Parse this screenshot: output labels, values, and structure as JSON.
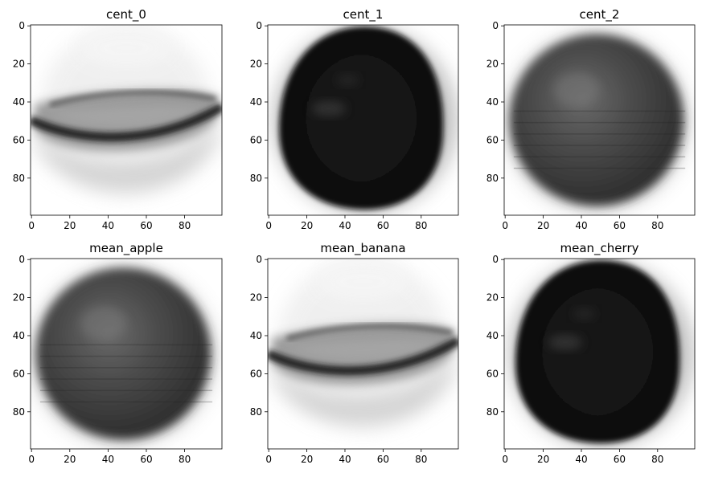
{
  "chart_data": [
    {
      "type": "heatmap",
      "title": "cent_0",
      "shape": "banana",
      "colormap": "gray_r",
      "xlim": [
        0,
        99
      ],
      "ylim": [
        99,
        0
      ],
      "xticks": [
        0,
        20,
        40,
        60,
        80
      ],
      "yticks": [
        0,
        20,
        40,
        60,
        80
      ]
    },
    {
      "type": "heatmap",
      "title": "cent_1",
      "shape": "cherry",
      "colormap": "gray_r",
      "xlim": [
        0,
        99
      ],
      "ylim": [
        99,
        0
      ],
      "xticks": [
        0,
        20,
        40,
        60,
        80
      ],
      "yticks": [
        0,
        20,
        40,
        60,
        80
      ]
    },
    {
      "type": "heatmap",
      "title": "cent_2",
      "shape": "apple",
      "colormap": "gray_r",
      "xlim": [
        0,
        99
      ],
      "ylim": [
        99,
        0
      ],
      "xticks": [
        0,
        20,
        40,
        60,
        80
      ],
      "yticks": [
        0,
        20,
        40,
        60,
        80
      ]
    },
    {
      "type": "heatmap",
      "title": "mean_apple",
      "shape": "apple",
      "colormap": "gray_r",
      "xlim": [
        0,
        99
      ],
      "ylim": [
        99,
        0
      ],
      "xticks": [
        0,
        20,
        40,
        60,
        80
      ],
      "yticks": [
        0,
        20,
        40,
        60,
        80
      ]
    },
    {
      "type": "heatmap",
      "title": "mean_banana",
      "shape": "banana",
      "colormap": "gray_r",
      "xlim": [
        0,
        99
      ],
      "ylim": [
        99,
        0
      ],
      "xticks": [
        0,
        20,
        40,
        60,
        80
      ],
      "yticks": [
        0,
        20,
        40,
        60,
        80
      ]
    },
    {
      "type": "heatmap",
      "title": "mean_cherry",
      "shape": "cherry",
      "colormap": "gray_r",
      "xlim": [
        0,
        99
      ],
      "ylim": [
        99,
        0
      ],
      "xticks": [
        0,
        20,
        40,
        60,
        80
      ],
      "yticks": [
        0,
        20,
        40,
        60,
        80
      ]
    }
  ]
}
